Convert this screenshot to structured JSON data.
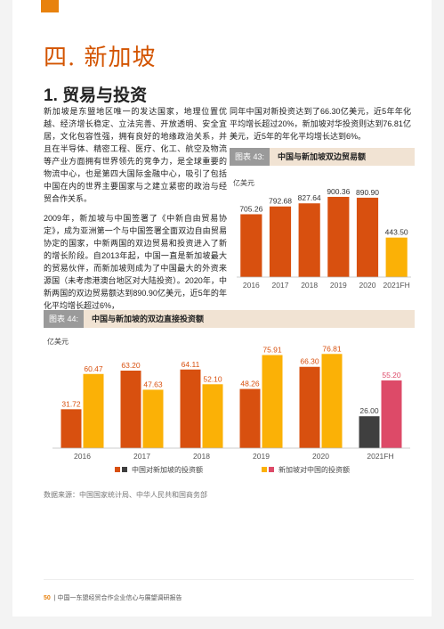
{
  "chapter_title": "四. 新加坡",
  "section_title": "1. 贸易与投资",
  "paragraphs": [
    "新加坡是东盟地区唯一的发达国家，地理位置优越、经济增长稳定、立法完善、开放透明、安全宜居，文化包容性强，拥有良好的地缘政治关系，并且在半导体、精密工程、医疗、化工、航空及物流等产业方面拥有世界领先的竞争力，是全球重要的物流中心，也是第四大国际金融中心，吸引了包括中国在内的世界主要国家与之建立紧密的政治与经贸合作关系。",
    "2009年，新加坡与中国签署了《中新自由贸易协定》，成为亚洲第一个与中国签署全面双边自由贸易协定的国家，中新两国的双边贸易和投资进入了新的增长阶段。自2013年起，中国一直是新加坡最大的贸易伙伴，而新加坡则成为了中国最大的外资来源国（未考虑港澳台地区对大陆投资）。2020年，中新两国的双边贸易额达到890.90亿美元，近5年的年化平均增长超过6%，",
    "同年中国对新投资达到了66.30亿美元，近5年年化平均增长超过20%，新加坡对华投资则达到76.81亿美元，近5年的年化平均增长达到6%。"
  ],
  "chart43": {
    "tag": "图表 43:",
    "title": "中国与新加坡双边贸易额",
    "unit": "亿美元"
  },
  "chart44": {
    "tag": "图表 44:",
    "title": "中国与新加坡的双边直接投资额",
    "unit": "亿美元"
  },
  "source": "数据来源：中国国家统计局、中华人民共和国商务部",
  "footer": {
    "page": "50",
    "text": "| 中国一东盟经贸合作企业信心与展望调研报告"
  },
  "colors": {
    "accent": "#e8820e",
    "bar_dark_orange": "#d8500f",
    "bar_yellow": "#fbb106",
    "bar_dark_grey": "#3f3f3f",
    "bar_pink": "#dd4a68",
    "chart_header_bg": "#f1e3d3"
  },
  "chart_data": [
    {
      "type": "bar",
      "title": "中国与新加坡双边贸易额",
      "ylabel": "亿美元",
      "categories": [
        "2016",
        "2017",
        "2018",
        "2019",
        "2020",
        "2021FH"
      ],
      "values": [
        705.26,
        792.68,
        827.64,
        900.36,
        890.9,
        443.5
      ],
      "bar_colors": [
        "#d8500f",
        "#d8500f",
        "#d8500f",
        "#d8500f",
        "#d8500f",
        "#fbb106"
      ],
      "ylim": [
        0,
        950
      ],
      "grid": false
    },
    {
      "type": "bar",
      "title": "中国与新加坡的双边直接投资额",
      "ylabel": "亿美元",
      "categories": [
        "2016",
        "2017",
        "2018",
        "2019",
        "2020",
        "2021FH"
      ],
      "series": [
        {
          "name": "中国对新加坡的投资额",
          "values": [
            31.72,
            63.2,
            64.11,
            48.26,
            66.3,
            26.0
          ],
          "colors": [
            "#d8500f",
            "#d8500f",
            "#d8500f",
            "#d8500f",
            "#d8500f",
            "#3f3f3f"
          ]
        },
        {
          "name": "新加坡对中国的投资额",
          "values": [
            60.47,
            47.63,
            52.1,
            75.91,
            76.81,
            55.2
          ],
          "colors": [
            "#fbb106",
            "#fbb106",
            "#fbb106",
            "#fbb106",
            "#fbb106",
            "#dd4a68"
          ]
        }
      ],
      "legend": [
        {
          "label": "中国对新加坡的投资额",
          "colors": [
            "#d8500f",
            "#3f3f3f"
          ]
        },
        {
          "label": "新加坡对中国的投资额",
          "colors": [
            "#fbb106",
            "#dd4a68"
          ]
        }
      ],
      "legend_position": "bottom",
      "ylim": [
        0,
        85
      ],
      "grid": false
    }
  ]
}
